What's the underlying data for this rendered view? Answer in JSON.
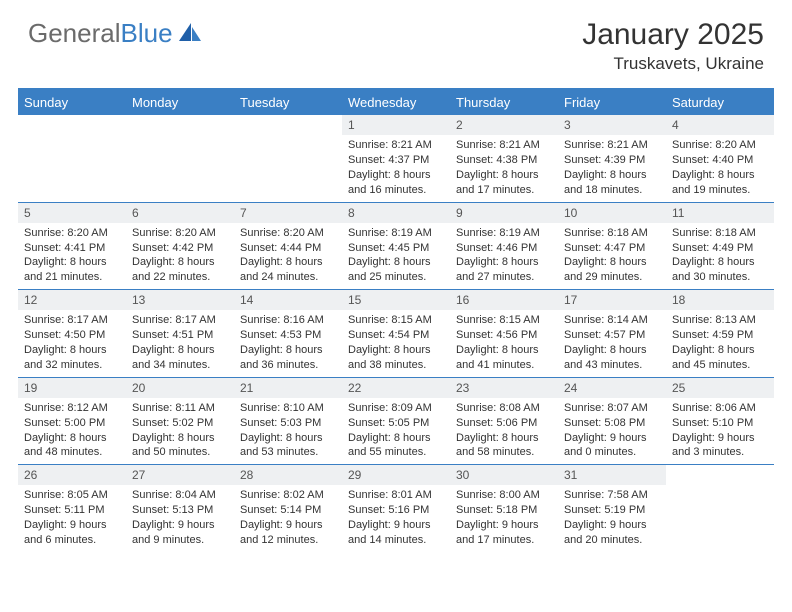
{
  "logo": {
    "text1": "General",
    "text2": "Blue"
  },
  "title": "January 2025",
  "location": "Truskavets, Ukraine",
  "colors": {
    "brand": "#3a7fc4",
    "header_text": "#ffffff",
    "daynum_bg": "#eef0f2",
    "text": "#333333",
    "logo_gray": "#6b6b6b"
  },
  "day_names": [
    "Sunday",
    "Monday",
    "Tuesday",
    "Wednesday",
    "Thursday",
    "Friday",
    "Saturday"
  ],
  "weeks": [
    [
      null,
      null,
      null,
      {
        "n": "1",
        "sr": "Sunrise: 8:21 AM",
        "ss": "Sunset: 4:37 PM",
        "d1": "Daylight: 8 hours",
        "d2": "and 16 minutes."
      },
      {
        "n": "2",
        "sr": "Sunrise: 8:21 AM",
        "ss": "Sunset: 4:38 PM",
        "d1": "Daylight: 8 hours",
        "d2": "and 17 minutes."
      },
      {
        "n": "3",
        "sr": "Sunrise: 8:21 AM",
        "ss": "Sunset: 4:39 PM",
        "d1": "Daylight: 8 hours",
        "d2": "and 18 minutes."
      },
      {
        "n": "4",
        "sr": "Sunrise: 8:20 AM",
        "ss": "Sunset: 4:40 PM",
        "d1": "Daylight: 8 hours",
        "d2": "and 19 minutes."
      }
    ],
    [
      {
        "n": "5",
        "sr": "Sunrise: 8:20 AM",
        "ss": "Sunset: 4:41 PM",
        "d1": "Daylight: 8 hours",
        "d2": "and 21 minutes."
      },
      {
        "n": "6",
        "sr": "Sunrise: 8:20 AM",
        "ss": "Sunset: 4:42 PM",
        "d1": "Daylight: 8 hours",
        "d2": "and 22 minutes."
      },
      {
        "n": "7",
        "sr": "Sunrise: 8:20 AM",
        "ss": "Sunset: 4:44 PM",
        "d1": "Daylight: 8 hours",
        "d2": "and 24 minutes."
      },
      {
        "n": "8",
        "sr": "Sunrise: 8:19 AM",
        "ss": "Sunset: 4:45 PM",
        "d1": "Daylight: 8 hours",
        "d2": "and 25 minutes."
      },
      {
        "n": "9",
        "sr": "Sunrise: 8:19 AM",
        "ss": "Sunset: 4:46 PM",
        "d1": "Daylight: 8 hours",
        "d2": "and 27 minutes."
      },
      {
        "n": "10",
        "sr": "Sunrise: 8:18 AM",
        "ss": "Sunset: 4:47 PM",
        "d1": "Daylight: 8 hours",
        "d2": "and 29 minutes."
      },
      {
        "n": "11",
        "sr": "Sunrise: 8:18 AM",
        "ss": "Sunset: 4:49 PM",
        "d1": "Daylight: 8 hours",
        "d2": "and 30 minutes."
      }
    ],
    [
      {
        "n": "12",
        "sr": "Sunrise: 8:17 AM",
        "ss": "Sunset: 4:50 PM",
        "d1": "Daylight: 8 hours",
        "d2": "and 32 minutes."
      },
      {
        "n": "13",
        "sr": "Sunrise: 8:17 AM",
        "ss": "Sunset: 4:51 PM",
        "d1": "Daylight: 8 hours",
        "d2": "and 34 minutes."
      },
      {
        "n": "14",
        "sr": "Sunrise: 8:16 AM",
        "ss": "Sunset: 4:53 PM",
        "d1": "Daylight: 8 hours",
        "d2": "and 36 minutes."
      },
      {
        "n": "15",
        "sr": "Sunrise: 8:15 AM",
        "ss": "Sunset: 4:54 PM",
        "d1": "Daylight: 8 hours",
        "d2": "and 38 minutes."
      },
      {
        "n": "16",
        "sr": "Sunrise: 8:15 AM",
        "ss": "Sunset: 4:56 PM",
        "d1": "Daylight: 8 hours",
        "d2": "and 41 minutes."
      },
      {
        "n": "17",
        "sr": "Sunrise: 8:14 AM",
        "ss": "Sunset: 4:57 PM",
        "d1": "Daylight: 8 hours",
        "d2": "and 43 minutes."
      },
      {
        "n": "18",
        "sr": "Sunrise: 8:13 AM",
        "ss": "Sunset: 4:59 PM",
        "d1": "Daylight: 8 hours",
        "d2": "and 45 minutes."
      }
    ],
    [
      {
        "n": "19",
        "sr": "Sunrise: 8:12 AM",
        "ss": "Sunset: 5:00 PM",
        "d1": "Daylight: 8 hours",
        "d2": "and 48 minutes."
      },
      {
        "n": "20",
        "sr": "Sunrise: 8:11 AM",
        "ss": "Sunset: 5:02 PM",
        "d1": "Daylight: 8 hours",
        "d2": "and 50 minutes."
      },
      {
        "n": "21",
        "sr": "Sunrise: 8:10 AM",
        "ss": "Sunset: 5:03 PM",
        "d1": "Daylight: 8 hours",
        "d2": "and 53 minutes."
      },
      {
        "n": "22",
        "sr": "Sunrise: 8:09 AM",
        "ss": "Sunset: 5:05 PM",
        "d1": "Daylight: 8 hours",
        "d2": "and 55 minutes."
      },
      {
        "n": "23",
        "sr": "Sunrise: 8:08 AM",
        "ss": "Sunset: 5:06 PM",
        "d1": "Daylight: 8 hours",
        "d2": "and 58 minutes."
      },
      {
        "n": "24",
        "sr": "Sunrise: 8:07 AM",
        "ss": "Sunset: 5:08 PM",
        "d1": "Daylight: 9 hours",
        "d2": "and 0 minutes."
      },
      {
        "n": "25",
        "sr": "Sunrise: 8:06 AM",
        "ss": "Sunset: 5:10 PM",
        "d1": "Daylight: 9 hours",
        "d2": "and 3 minutes."
      }
    ],
    [
      {
        "n": "26",
        "sr": "Sunrise: 8:05 AM",
        "ss": "Sunset: 5:11 PM",
        "d1": "Daylight: 9 hours",
        "d2": "and 6 minutes."
      },
      {
        "n": "27",
        "sr": "Sunrise: 8:04 AM",
        "ss": "Sunset: 5:13 PM",
        "d1": "Daylight: 9 hours",
        "d2": "and 9 minutes."
      },
      {
        "n": "28",
        "sr": "Sunrise: 8:02 AM",
        "ss": "Sunset: 5:14 PM",
        "d1": "Daylight: 9 hours",
        "d2": "and 12 minutes."
      },
      {
        "n": "29",
        "sr": "Sunrise: 8:01 AM",
        "ss": "Sunset: 5:16 PM",
        "d1": "Daylight: 9 hours",
        "d2": "and 14 minutes."
      },
      {
        "n": "30",
        "sr": "Sunrise: 8:00 AM",
        "ss": "Sunset: 5:18 PM",
        "d1": "Daylight: 9 hours",
        "d2": "and 17 minutes."
      },
      {
        "n": "31",
        "sr": "Sunrise: 7:58 AM",
        "ss": "Sunset: 5:19 PM",
        "d1": "Daylight: 9 hours",
        "d2": "and 20 minutes."
      },
      null
    ]
  ]
}
